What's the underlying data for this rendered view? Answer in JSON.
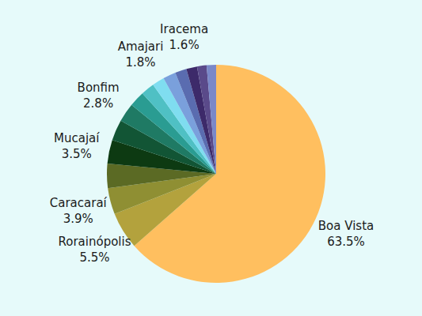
{
  "chart_data": {
    "type": "pie",
    "categories": [
      "Boa Vista",
      "Rorainópolis",
      "Caracaraí",
      null,
      "Mucajaí",
      null,
      "Bonfim",
      null,
      null,
      "Amajari",
      null,
      null,
      "Iracema",
      null,
      null
    ],
    "values": [
      63.5,
      5.5,
      3.9,
      3.6,
      3.5,
      3.1,
      2.8,
      2.3,
      2.0,
      1.8,
      1.9,
      1.7,
      1.6,
      1.4,
      1.4
    ],
    "value_labels": [
      "63.5%",
      "5.5%",
      "3.9%",
      null,
      "3.5%",
      null,
      "2.8%",
      null,
      null,
      "1.8%",
      null,
      null,
      "1.6%",
      null,
      null
    ],
    "colors": [
      "#FFBF5F",
      "#B3A23D",
      "#8F8F33",
      "#5B6A24",
      "#0D3A12",
      "#125535",
      "#1F7A64",
      "#2A9C92",
      "#4FC0C4",
      "#7FDDF0",
      "#7AA0DC",
      "#5A6CB0",
      "#3D2A6A",
      "#5A4A8A",
      "#7A88C8"
    ],
    "data_labels": true
  }
}
